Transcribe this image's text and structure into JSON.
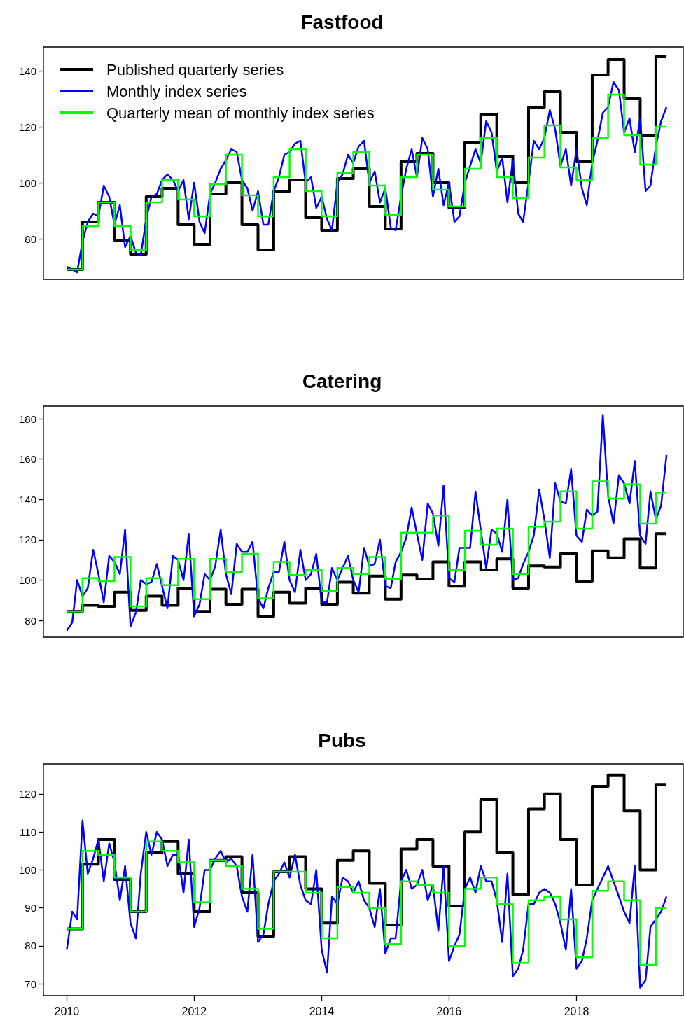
{
  "chart_data": [
    {
      "type": "line",
      "title": "Fastfood",
      "legend": "top left",
      "tick_labels": "y",
      "marker": "none",
      "x": [
        "2010-01",
        "2010-02",
        "2010-03",
        "2010-04",
        "2010-05",
        "2010-06",
        "2010-07",
        "2010-08",
        "2010-09",
        "2010-10",
        "2010-11",
        "2010-12",
        "2011-01",
        "2011-02",
        "2011-03",
        "2011-04",
        "2011-05",
        "2011-06",
        "2011-07",
        "2011-08",
        "2011-09",
        "2011-10",
        "2011-11",
        "2011-12",
        "2012-01",
        "2012-02",
        "2012-03",
        "2012-04",
        "2012-05",
        "2012-06",
        "2012-07",
        "2012-08",
        "2012-09",
        "2012-10",
        "2012-11",
        "2012-12",
        "2013-01",
        "2013-02",
        "2013-03",
        "2013-04",
        "2013-05",
        "2013-06",
        "2013-07",
        "2013-08",
        "2013-09",
        "2013-10",
        "2013-11",
        "2013-12",
        "2014-01",
        "2014-02",
        "2014-03",
        "2014-04",
        "2014-05",
        "2014-06",
        "2014-07",
        "2014-08",
        "2014-09",
        "2014-10",
        "2014-11",
        "2014-12",
        "2015-01",
        "2015-02",
        "2015-03",
        "2015-04",
        "2015-05",
        "2015-06",
        "2015-07",
        "2015-08",
        "2015-09",
        "2015-10",
        "2015-11",
        "2015-12",
        "2016-01",
        "2016-02",
        "2016-03",
        "2016-04",
        "2016-05",
        "2016-06",
        "2016-07",
        "2016-08",
        "2016-09",
        "2016-10",
        "2016-11",
        "2016-12",
        "2017-01",
        "2017-02",
        "2017-03",
        "2017-04",
        "2017-05",
        "2017-06",
        "2017-07",
        "2017-08",
        "2017-09",
        "2017-10",
        "2017-11",
        "2017-12",
        "2018-01",
        "2018-02",
        "2018-03",
        "2018-04",
        "2018-05",
        "2018-06",
        "2018-07",
        "2018-08",
        "2018-09",
        "2018-10",
        "2018-11",
        "2018-12",
        "2019-01",
        "2019-02",
        "2019-03",
        "2019-04",
        "2019-05",
        "2019-06"
      ],
      "series": [
        {
          "name": "Published quarterly series",
          "type": "step",
          "color": "#000000",
          "x": [
            "2010-01",
            "2010-04",
            "2010-07",
            "2010-10",
            "2011-01",
            "2011-04",
            "2011-07",
            "2011-10",
            "2012-01",
            "2012-04",
            "2012-07",
            "2012-10",
            "2013-01",
            "2013-04",
            "2013-07",
            "2013-10",
            "2014-01",
            "2014-04",
            "2014-07",
            "2014-10",
            "2015-01",
            "2015-04",
            "2015-07",
            "2015-10",
            "2016-01",
            "2016-04",
            "2016-07",
            "2016-10",
            "2017-01",
            "2017-04",
            "2017-07",
            "2017-10",
            "2018-01",
            "2018-04",
            "2018-07",
            "2018-10",
            "2019-01",
            "2019-04",
            "2019-06"
          ],
          "values": [
            69,
            86,
            93,
            79.5,
            74.5,
            95,
            98,
            85,
            78,
            96,
            100,
            85,
            76,
            97,
            101,
            87.5,
            83,
            101.5,
            105,
            91.5,
            83.5,
            107.5,
            110.5,
            100,
            91,
            114.5,
            124.5,
            109.5,
            100,
            127,
            132.5,
            118,
            107.5,
            138.5,
            144,
            130,
            117,
            145,
            145
          ]
        },
        {
          "name": "Monthly index series",
          "color": "#0000ff",
          "values": [
            70,
            69,
            68,
            79,
            86,
            89,
            88,
            99,
            95,
            85,
            92,
            77,
            81,
            75,
            74,
            87,
            95,
            96,
            101,
            103,
            101,
            97,
            101,
            87,
            100,
            86,
            82,
            96,
            100,
            105,
            108,
            112,
            111,
            101,
            98,
            90,
            97,
            85,
            85,
            97,
            102,
            110,
            111,
            114,
            115,
            100,
            102,
            91,
            95,
            87,
            83,
            100,
            103,
            110,
            107,
            113,
            115,
            100,
            104,
            93,
            98,
            84,
            83,
            95,
            105,
            112,
            102,
            116,
            112,
            95,
            105,
            92,
            100,
            86,
            88,
            100,
            106,
            112,
            107,
            122,
            118,
            104,
            109,
            93,
            108,
            89,
            86,
            100,
            115,
            112,
            116,
            126,
            119,
            106,
            112,
            99,
            112,
            98,
            92,
            107,
            115,
            125,
            127,
            136,
            133,
            118,
            123,
            111,
            123,
            97,
            99,
            113,
            122,
            127
          ]
        },
        {
          "name": "Quarterly mean of monthly index series",
          "type": "step",
          "color": "#00ff00",
          "x": [
            "2010-01",
            "2010-04",
            "2010-07",
            "2010-10",
            "2011-01",
            "2011-04",
            "2011-07",
            "2011-10",
            "2012-01",
            "2012-04",
            "2012-07",
            "2012-10",
            "2013-01",
            "2013-04",
            "2013-07",
            "2013-10",
            "2014-01",
            "2014-04",
            "2014-07",
            "2014-10",
            "2015-01",
            "2015-04",
            "2015-07",
            "2015-10",
            "2016-01",
            "2016-04",
            "2016-07",
            "2016-10",
            "2017-01",
            "2017-04",
            "2017-07",
            "2017-10",
            "2018-01",
            "2018-04",
            "2018-07",
            "2018-10",
            "2019-01",
            "2019-04",
            "2019-06"
          ],
          "values": [
            69,
            84.5,
            93,
            84.5,
            76,
            93,
            101,
            94,
            88,
            99.5,
            110,
            95.5,
            88,
            102,
            112,
            97,
            88,
            103.5,
            111,
            99,
            88.5,
            102,
            110,
            97.5,
            91.5,
            105,
            116,
            102,
            94.5,
            109,
            120.5,
            105.5,
            101,
            116,
            131.5,
            117,
            106.5,
            120,
            120
          ]
        }
      ],
      "xlim": [
        "2009-08-20",
        "2019-09-05"
      ],
      "xticks": [
        "2010",
        "2012",
        "2014",
        "2016",
        "2018"
      ],
      "ylim": [
        65.5,
        148.5
      ],
      "yticks": [
        80,
        100,
        120,
        140
      ]
    },
    {
      "type": "line",
      "title": "Catering",
      "tick_labels": "y",
      "marker": "none",
      "x": [
        "2010-01",
        "2010-02",
        "2010-03",
        "2010-04",
        "2010-05",
        "2010-06",
        "2010-07",
        "2010-08",
        "2010-09",
        "2010-10",
        "2010-11",
        "2010-12",
        "2011-01",
        "2011-02",
        "2011-03",
        "2011-04",
        "2011-05",
        "2011-06",
        "2011-07",
        "2011-08",
        "2011-09",
        "2011-10",
        "2011-11",
        "2011-12",
        "2012-01",
        "2012-02",
        "2012-03",
        "2012-04",
        "2012-05",
        "2012-06",
        "2012-07",
        "2012-08",
        "2012-09",
        "2012-10",
        "2012-11",
        "2012-12",
        "2013-01",
        "2013-02",
        "2013-03",
        "2013-04",
        "2013-05",
        "2013-06",
        "2013-07",
        "2013-08",
        "2013-09",
        "2013-10",
        "2013-11",
        "2013-12",
        "2014-01",
        "2014-02",
        "2014-03",
        "2014-04",
        "2014-05",
        "2014-06",
        "2014-07",
        "2014-08",
        "2014-09",
        "2014-10",
        "2014-11",
        "2014-12",
        "2015-01",
        "2015-02",
        "2015-03",
        "2015-04",
        "2015-05",
        "2015-06",
        "2015-07",
        "2015-08",
        "2015-09",
        "2015-10",
        "2015-11",
        "2015-12",
        "2016-01",
        "2016-02",
        "2016-03",
        "2016-04",
        "2016-05",
        "2016-06",
        "2016-07",
        "2016-08",
        "2016-09",
        "2016-10",
        "2016-11",
        "2016-12",
        "2017-01",
        "2017-02",
        "2017-03",
        "2017-04",
        "2017-05",
        "2017-06",
        "2017-07",
        "2017-08",
        "2017-09",
        "2017-10",
        "2017-11",
        "2017-12",
        "2018-01",
        "2018-02",
        "2018-03",
        "2018-04",
        "2018-05",
        "2018-06",
        "2018-07",
        "2018-08",
        "2018-09",
        "2018-10",
        "2018-11",
        "2018-12",
        "2019-01",
        "2019-02",
        "2019-03",
        "2019-04",
        "2019-05",
        "2019-06"
      ],
      "series": [
        {
          "type": "step",
          "color": "#000000",
          "x": [
            "2010-01",
            "2010-04",
            "2010-07",
            "2010-10",
            "2011-01",
            "2011-04",
            "2011-07",
            "2011-10",
            "2012-01",
            "2012-04",
            "2012-07",
            "2012-10",
            "2013-01",
            "2013-04",
            "2013-07",
            "2013-10",
            "2014-01",
            "2014-04",
            "2014-07",
            "2014-10",
            "2015-01",
            "2015-04",
            "2015-07",
            "2015-10",
            "2016-01",
            "2016-04",
            "2016-07",
            "2016-10",
            "2017-01",
            "2017-04",
            "2017-07",
            "2017-10",
            "2018-01",
            "2018-04",
            "2018-07",
            "2018-10",
            "2019-01",
            "2019-04",
            "2019-06"
          ],
          "values": [
            84.5,
            87.5,
            87,
            94,
            85,
            92,
            87.5,
            96,
            84.5,
            95.5,
            88,
            95.5,
            82,
            94,
            88.5,
            96,
            88,
            99,
            93.5,
            102,
            90.5,
            102.5,
            100.5,
            109,
            97,
            109,
            105,
            110.5,
            96,
            107,
            106.5,
            113,
            99.5,
            114.5,
            111,
            120.5,
            106,
            123,
            123
          ]
        },
        {
          "color": "#0000ff",
          "values": [
            75,
            79,
            100,
            92,
            96,
            115,
            103,
            89,
            112,
            109,
            103,
            125,
            77,
            84,
            100,
            98,
            99,
            108,
            97,
            86,
            112,
            110,
            100,
            123,
            82,
            88,
            103,
            100,
            107,
            125,
            103,
            93,
            118,
            114,
            114,
            119,
            91,
            86,
            96,
            104,
            104,
            119,
            100,
            94,
            115,
            100,
            103,
            113,
            89,
            89,
            106,
            100,
            106,
            112,
            100,
            94,
            116,
            107,
            108,
            120,
            97,
            96,
            109,
            114,
            121,
            136,
            123,
            110,
            138,
            133,
            117,
            147,
            101,
            99,
            116,
            116,
            116,
            144,
            125,
            106,
            125,
            123,
            114,
            140,
            100,
            101,
            108,
            114,
            122,
            145,
            130,
            111,
            148,
            139,
            138,
            155,
            122,
            119,
            135,
            132,
            134,
            182,
            142,
            128,
            152,
            148,
            138,
            159,
            122,
            118,
            144,
            130,
            137,
            162
          ]
        },
        {
          "type": "step",
          "color": "#00ff00",
          "x": [
            "2010-01",
            "2010-04",
            "2010-07",
            "2010-10",
            "2011-01",
            "2011-04",
            "2011-07",
            "2011-10",
            "2012-01",
            "2012-04",
            "2012-07",
            "2012-10",
            "2013-01",
            "2013-04",
            "2013-07",
            "2013-10",
            "2014-01",
            "2014-04",
            "2014-07",
            "2014-10",
            "2015-01",
            "2015-04",
            "2015-07",
            "2015-10",
            "2016-01",
            "2016-04",
            "2016-07",
            "2016-10",
            "2017-01",
            "2017-04",
            "2017-07",
            "2017-10",
            "2018-01",
            "2018-04",
            "2018-07",
            "2018-10",
            "2019-01",
            "2019-04",
            "2019-06"
          ],
          "values": [
            84.5,
            101,
            99.5,
            111.5,
            87,
            101,
            97.5,
            110.5,
            90.5,
            110.5,
            104,
            113,
            91,
            109,
            102.5,
            105,
            94.5,
            106,
            103,
            111.5,
            100.5,
            123.5,
            123.5,
            132,
            105,
            124.5,
            117.5,
            125.5,
            103,
            126.5,
            129,
            144,
            125.5,
            149,
            140.5,
            147.5,
            128,
            143.5,
            143.5
          ]
        }
      ],
      "xlim": [
        "2009-08-20",
        "2019-09-05"
      ],
      "xticks": [
        "2010",
        "2012",
        "2014",
        "2016",
        "2018"
      ],
      "ylim": [
        71.7,
        186.3
      ],
      "yticks": [
        80,
        100,
        120,
        140,
        160,
        180
      ]
    },
    {
      "type": "line",
      "title": "Pubs",
      "marker": "none",
      "x": [
        "2010-01",
        "2010-02",
        "2010-03",
        "2010-04",
        "2010-05",
        "2010-06",
        "2010-07",
        "2010-08",
        "2010-09",
        "2010-10",
        "2010-11",
        "2010-12",
        "2011-01",
        "2011-02",
        "2011-03",
        "2011-04",
        "2011-05",
        "2011-06",
        "2011-07",
        "2011-08",
        "2011-09",
        "2011-10",
        "2011-11",
        "2011-12",
        "2012-01",
        "2012-02",
        "2012-03",
        "2012-04",
        "2012-05",
        "2012-06",
        "2012-07",
        "2012-08",
        "2012-09",
        "2012-10",
        "2012-11",
        "2012-12",
        "2013-01",
        "2013-02",
        "2013-03",
        "2013-04",
        "2013-05",
        "2013-06",
        "2013-07",
        "2013-08",
        "2013-09",
        "2013-10",
        "2013-11",
        "2013-12",
        "2014-01",
        "2014-02",
        "2014-03",
        "2014-04",
        "2014-05",
        "2014-06",
        "2014-07",
        "2014-08",
        "2014-09",
        "2014-10",
        "2014-11",
        "2014-12",
        "2015-01",
        "2015-02",
        "2015-03",
        "2015-04",
        "2015-05",
        "2015-06",
        "2015-07",
        "2015-08",
        "2015-09",
        "2015-10",
        "2015-11",
        "2015-12",
        "2016-01",
        "2016-02",
        "2016-03",
        "2016-04",
        "2016-05",
        "2016-06",
        "2016-07",
        "2016-08",
        "2016-09",
        "2016-10",
        "2016-11",
        "2016-12",
        "2017-01",
        "2017-02",
        "2017-03",
        "2017-04",
        "2017-05",
        "2017-06",
        "2017-07",
        "2017-08",
        "2017-09",
        "2017-10",
        "2017-11",
        "2017-12",
        "2018-01",
        "2018-02",
        "2018-03",
        "2018-04",
        "2018-05",
        "2018-06",
        "2018-07",
        "2018-08",
        "2018-09",
        "2018-10",
        "2018-11",
        "2018-12",
        "2019-01",
        "2019-02",
        "2019-03",
        "2019-04",
        "2019-05",
        "2019-06"
      ],
      "series": [
        {
          "type": "step",
          "color": "#000000",
          "x": [
            "2010-01",
            "2010-04",
            "2010-07",
            "2010-10",
            "2011-01",
            "2011-04",
            "2011-07",
            "2011-10",
            "2012-01",
            "2012-04",
            "2012-07",
            "2012-10",
            "2013-01",
            "2013-04",
            "2013-07",
            "2013-10",
            "2014-01",
            "2014-04",
            "2014-07",
            "2014-10",
            "2015-01",
            "2015-04",
            "2015-07",
            "2015-10",
            "2016-01",
            "2016-04",
            "2016-07",
            "2016-10",
            "2017-01",
            "2017-04",
            "2017-07",
            "2017-10",
            "2018-01",
            "2018-04",
            "2018-07",
            "2018-10",
            "2019-01",
            "2019-04",
            "2019-06"
          ],
          "values": [
            84.5,
            101.5,
            108,
            97.5,
            89,
            104.5,
            107.5,
            99,
            89,
            102.5,
            103.5,
            94,
            82.5,
            99.5,
            103.5,
            95,
            86,
            102.5,
            105,
            96.5,
            85.5,
            105.5,
            108,
            101,
            90.5,
            110,
            118.5,
            104.5,
            93.5,
            116,
            120,
            108,
            96,
            122,
            125,
            115.5,
            100,
            122.5,
            122.5
          ]
        },
        {
          "color": "#0000ff",
          "values": [
            79,
            89,
            87,
            113,
            99,
            103,
            108,
            97,
            107,
            102,
            92,
            101,
            86,
            82,
            99,
            110,
            104,
            110,
            108,
            101,
            104,
            104,
            94,
            108,
            85,
            90,
            100,
            100,
            103,
            105,
            102,
            103,
            101,
            93,
            89,
            104,
            81,
            83,
            91,
            97,
            99,
            102,
            98,
            104,
            96,
            92,
            91,
            100,
            79,
            73,
            93,
            91,
            98,
            97,
            94,
            97,
            92,
            90,
            85,
            95,
            78,
            82,
            82,
            97,
            100,
            95,
            96,
            100,
            92,
            96,
            84,
            101,
            76,
            80,
            83,
            95,
            98,
            94,
            101,
            97,
            97,
            92,
            81,
            99,
            72,
            74,
            79,
            91,
            91,
            94,
            95,
            94,
            91,
            86,
            79,
            95,
            74,
            76,
            82,
            92,
            95,
            98,
            101,
            97,
            93,
            89,
            86,
            101,
            69,
            71,
            85,
            87,
            89,
            93
          ]
        },
        {
          "type": "step",
          "color": "#00ff00",
          "x": [
            "2010-01",
            "2010-04",
            "2010-07",
            "2010-10",
            "2011-01",
            "2011-04",
            "2011-07",
            "2011-10",
            "2012-01",
            "2012-04",
            "2012-07",
            "2012-10",
            "2013-01",
            "2013-04",
            "2013-07",
            "2013-10",
            "2014-01",
            "2014-04",
            "2014-07",
            "2014-10",
            "2015-01",
            "2015-04",
            "2015-07",
            "2015-10",
            "2016-01",
            "2016-04",
            "2016-07",
            "2016-10",
            "2017-01",
            "2017-04",
            "2017-07",
            "2017-10",
            "2018-01",
            "2018-04",
            "2018-07",
            "2018-10",
            "2019-01",
            "2019-04",
            "2019-06"
          ],
          "values": [
            84.5,
            105,
            104,
            98,
            89,
            107.5,
            105,
            102,
            91.5,
            102.5,
            101,
            95,
            84.5,
            99.5,
            99.5,
            94,
            82,
            95.5,
            94,
            90,
            80.5,
            97,
            96,
            94,
            80,
            95,
            98,
            91,
            75.5,
            92,
            93,
            87,
            77,
            94.5,
            97,
            92,
            75,
            90,
            90
          ]
        }
      ],
      "xlim": [
        "2009-08-20",
        "2019-09-05"
      ],
      "xticks": [
        "2010",
        "2012",
        "2014",
        "2016",
        "2018"
      ],
      "ylim": [
        66.9,
        127.9
      ],
      "yticks": [
        70,
        80,
        90,
        100,
        110,
        120
      ]
    }
  ]
}
